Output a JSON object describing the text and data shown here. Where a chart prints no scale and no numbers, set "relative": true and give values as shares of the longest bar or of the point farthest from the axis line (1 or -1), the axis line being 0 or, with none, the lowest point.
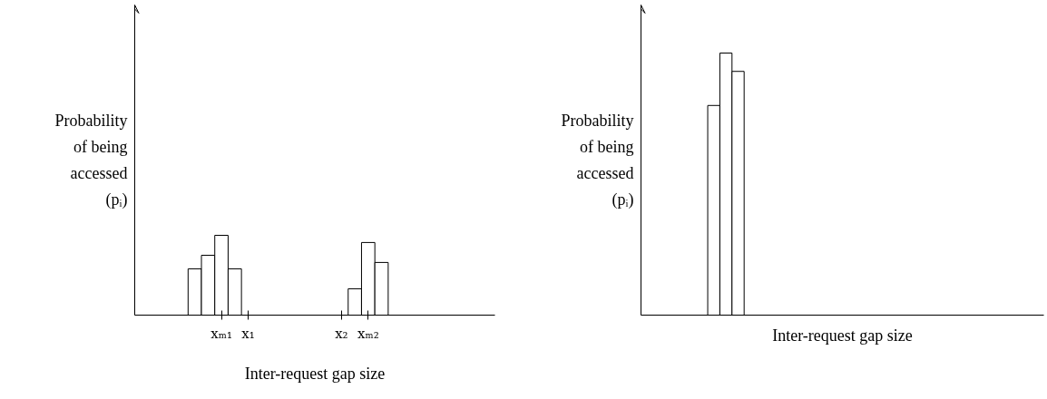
{
  "chart_data": [
    {
      "type": "bar",
      "relative": true,
      "categories": [
        null,
        null,
        null,
        null,
        null,
        null,
        "xₘ₁",
        null,
        "x₁",
        null,
        null,
        null,
        null,
        null,
        null,
        "x₂",
        null,
        "xₘ₂",
        null,
        null,
        null,
        null,
        null,
        null,
        null,
        null,
        null
      ],
      "values": [
        null,
        null,
        null,
        null,
        0.58,
        0.75,
        1,
        0.58,
        null,
        null,
        null,
        null,
        null,
        null,
        null,
        null,
        0.33,
        0.91,
        0.66,
        null,
        null,
        null,
        null,
        null,
        null,
        null,
        null
      ],
      "color": "#ffffff",
      "xlabel": "Inter-request gap size",
      "ylabel": "Probability\nof being\naccessed\n(pᵢ)",
      "grid": false
    },
    {
      "type": "bar",
      "relative": true,
      "categories": [
        null,
        null,
        null
      ],
      "values": [
        0.8,
        1,
        0.93
      ],
      "color": "#ffffff",
      "xlabel": "Inter-request gap size",
      "ylabel": "Probability\nof being\naccessed\n(pᵢ)",
      "grid": false
    }
  ]
}
